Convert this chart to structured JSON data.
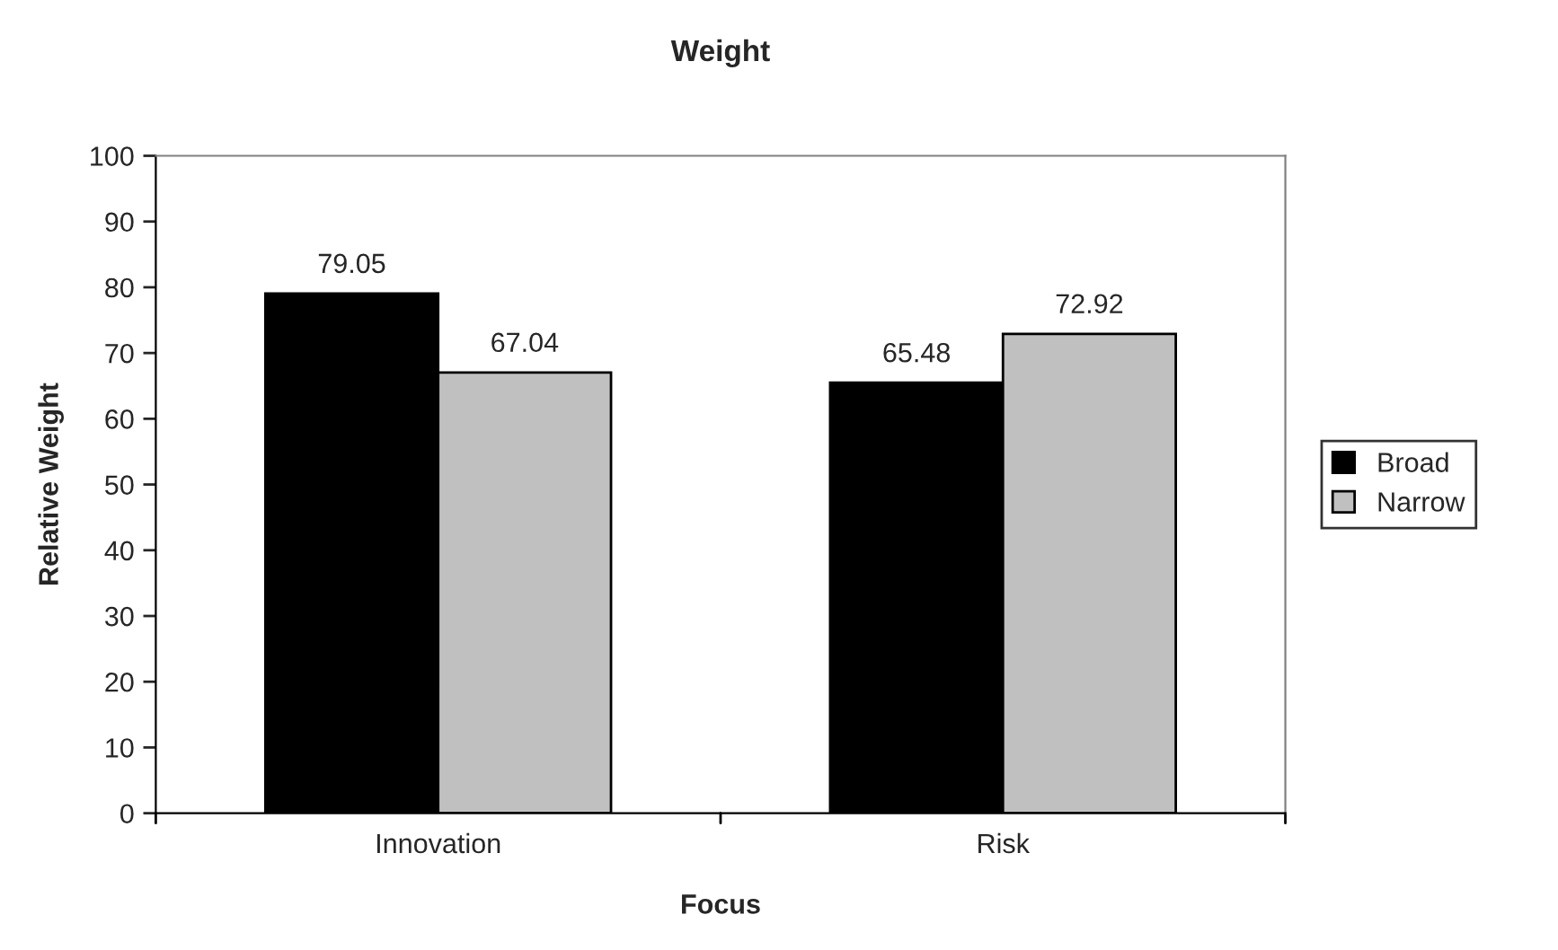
{
  "chart_data": {
    "type": "bar",
    "title": "Weight",
    "xlabel": "Focus",
    "ylabel": "Relative Weight",
    "categories": [
      "Innovation",
      "Risk"
    ],
    "series": [
      {
        "name": "Broad",
        "color": "#000000",
        "values": [
          79.05,
          65.48
        ]
      },
      {
        "name": "Narrow",
        "color": "#c0c0c0",
        "values": [
          67.04,
          72.92
        ]
      }
    ],
    "ylim": [
      0,
      100
    ],
    "yticks": [
      0,
      10,
      20,
      30,
      40,
      50,
      60,
      70,
      80,
      90,
      100
    ],
    "data_labels": true,
    "grid": false,
    "legend": "right"
  }
}
